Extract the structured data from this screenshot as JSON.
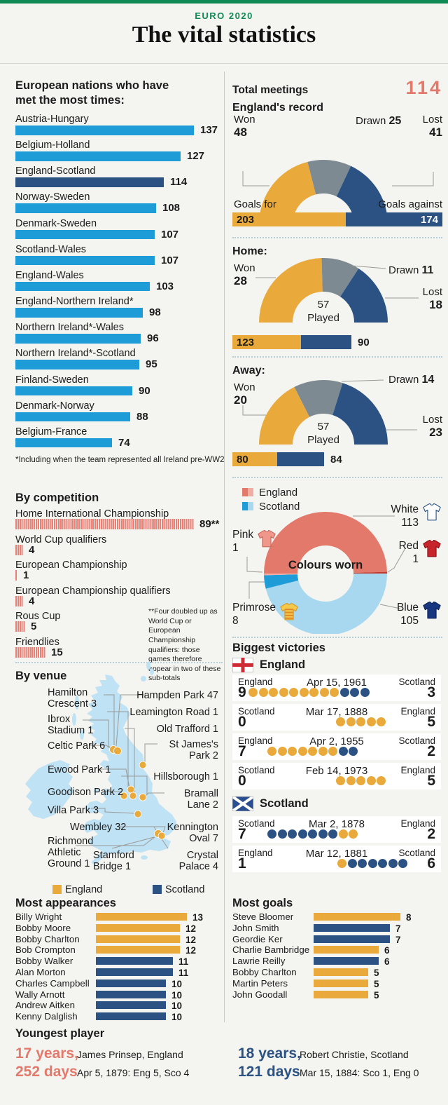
{
  "header": {
    "kicker": "EURO 2020",
    "title": "The vital statistics"
  },
  "colors": {
    "green": "#0f8a55",
    "gold": "#e9a93b",
    "navy": "#2b5283",
    "light_blue": "#1e9cd8",
    "gray": "#7d8a91",
    "coral": "#e3796b",
    "coral_light": "#f2ada2",
    "scotland_light_blue": "#a8d8ef",
    "map_blue": "#bfe2f4",
    "stripe_coral": "#e98076",
    "red_shirt": "#c8242c"
  },
  "chart_data": [
    {
      "id": "most_met",
      "type": "bar",
      "title": "European nations who have met the most times:",
      "categories": [
        "Austria-Hungary",
        "Belgium-Holland",
        "England-Scotland",
        "Norway-Sweden",
        "Denmark-Sweden",
        "Scotland-Wales",
        "England-Wales",
        "England-Northern Ireland*",
        "Northern Ireland*-Wales",
        "Northern Ireland*-Scotland",
        "Finland-Sweden",
        "Denmark-Norway",
        "Belgium-France"
      ],
      "values": [
        137,
        127,
        114,
        108,
        107,
        107,
        103,
        98,
        96,
        95,
        90,
        88,
        74
      ],
      "highlight": "England-Scotland",
      "footnote": "*Including when the team represented all Ireland pre-WW2"
    },
    {
      "id": "england_record",
      "type": "pie",
      "total_label": "Total meetings",
      "total": 114,
      "title": "England's record",
      "segments": [
        {
          "label": "Won",
          "value": 48
        },
        {
          "label": "Drawn",
          "value": 25
        },
        {
          "label": "Lost",
          "value": 41
        }
      ],
      "goals": {
        "for_label": "Goals for",
        "against_label": "Goals against",
        "for": 203,
        "against": 174
      }
    },
    {
      "id": "home_record",
      "type": "pie",
      "title": "Home:",
      "played": 57,
      "played_label": "Played",
      "segments": [
        {
          "label": "Won",
          "value": 28
        },
        {
          "label": "Drawn",
          "value": 11
        },
        {
          "label": "Lost",
          "value": 18
        }
      ],
      "goals": {
        "for": 123,
        "against": 90
      }
    },
    {
      "id": "away_record",
      "type": "pie",
      "title": "Away:",
      "played": 57,
      "played_label": "Played",
      "segments": [
        {
          "label": "Won",
          "value": 20
        },
        {
          "label": "Drawn",
          "value": 14
        },
        {
          "label": "Lost",
          "value": 23
        }
      ],
      "goals": {
        "for": 80,
        "against": 84
      }
    },
    {
      "id": "colours_worn",
      "type": "pie",
      "center_label": "Colours worn",
      "legend": [
        {
          "label": "England"
        },
        {
          "label": "Scotland"
        }
      ],
      "segments": [
        {
          "label": "White",
          "value": 113,
          "team": "England"
        },
        {
          "label": "Red",
          "value": 1,
          "team": "England"
        },
        {
          "label": "Pink",
          "value": 1,
          "team": "England"
        },
        {
          "label": "Primrose",
          "value": 8,
          "team": "Scotland"
        },
        {
          "label": "Blue",
          "value": 105,
          "team": "Scotland"
        }
      ]
    },
    {
      "id": "by_competition",
      "type": "bar",
      "title": "By competition",
      "categories": [
        "Home International Championship",
        "World Cup qualifiers",
        "European Championship",
        "European Championship qualifiers",
        "Rous Cup",
        "Friendlies"
      ],
      "values": [
        89,
        4,
        1,
        4,
        5,
        15
      ],
      "value_labels": [
        "89**",
        "4",
        "1",
        "4",
        "5",
        "15"
      ],
      "footnote": "**Four doubled up as World Cup or European Championship qualifiers: those games therefore appear in two of these sub-totals"
    },
    {
      "id": "by_venue",
      "type": "map",
      "title": "By venue",
      "venues": [
        {
          "name": "Hampden Park",
          "value": 47
        },
        {
          "name": "Hamilton Crescent",
          "value": 3
        },
        {
          "name": "Ibrox Stadium",
          "value": 1
        },
        {
          "name": "Celtic Park",
          "value": 6
        },
        {
          "name": "Leamington Road",
          "value": 1
        },
        {
          "name": "Old Trafford",
          "value": 1
        },
        {
          "name": "St James's Park",
          "value": 2
        },
        {
          "name": "Hillsborough",
          "value": 1
        },
        {
          "name": "Ewood Park",
          "value": 1
        },
        {
          "name": "Goodison Park",
          "value": 2
        },
        {
          "name": "Bramall Lane",
          "value": 2
        },
        {
          "name": "Villa Park",
          "value": 3
        },
        {
          "name": "Wembley",
          "value": 32
        },
        {
          "name": "Kennington Oval",
          "value": 7
        },
        {
          "name": "Richmond Athletic Ground",
          "value": 1
        },
        {
          "name": "Stamford Bridge",
          "value": 1
        },
        {
          "name": "Crystal Palace",
          "value": 4
        }
      ],
      "legend": [
        {
          "label": "England"
        },
        {
          "label": "Scotland"
        }
      ]
    },
    {
      "id": "biggest_victories",
      "type": "table",
      "title": "Biggest victories",
      "groups": [
        {
          "team": "England",
          "matches": [
            {
              "home": "England",
              "home_score": 9,
              "date": "Apr 15, 1961",
              "away": "Scotland",
              "away_score": 3
            },
            {
              "home": "Scotland",
              "home_score": 0,
              "date": "Mar 17, 1888",
              "away": "England",
              "away_score": 5
            },
            {
              "home": "England",
              "home_score": 7,
              "date": "Apr 2, 1955",
              "away": "Scotland",
              "away_score": 2
            },
            {
              "home": "Scotland",
              "home_score": 0,
              "date": "Feb 14, 1973",
              "away": "England",
              "away_score": 5
            }
          ]
        },
        {
          "team": "Scotland",
          "matches": [
            {
              "home": "Scotland",
              "home_score": 7,
              "date": "Mar 2, 1878",
              "away": "England",
              "away_score": 2
            },
            {
              "home": "England",
              "home_score": 1,
              "date": "Mar 12, 1881",
              "away": "Scotland",
              "away_score": 6
            }
          ]
        }
      ]
    },
    {
      "id": "most_appearances",
      "type": "bar",
      "title": "Most appearances",
      "players": [
        {
          "name": "Billy Wright",
          "value": 13,
          "team": "England"
        },
        {
          "name": "Bobby Moore",
          "value": 12,
          "team": "England"
        },
        {
          "name": "Bobby Charlton",
          "value": 12,
          "team": "England"
        },
        {
          "name": "Bob Crompton",
          "value": 12,
          "team": "England"
        },
        {
          "name": "Bobby Walker",
          "value": 11,
          "team": "Scotland"
        },
        {
          "name": "Alan Morton",
          "value": 11,
          "team": "Scotland"
        },
        {
          "name": "Charles Campbell",
          "value": 10,
          "team": "Scotland"
        },
        {
          "name": "Wally Arnott",
          "value": 10,
          "team": "Scotland"
        },
        {
          "name": "Andrew Aitken",
          "value": 10,
          "team": "Scotland"
        },
        {
          "name": "Kenny Dalglish",
          "value": 10,
          "team": "Scotland"
        }
      ]
    },
    {
      "id": "most_goals",
      "type": "bar",
      "title": "Most goals",
      "players": [
        {
          "name": "Steve Bloomer",
          "value": 8,
          "team": "England"
        },
        {
          "name": "John Smith",
          "value": 7,
          "team": "Scotland"
        },
        {
          "name": "Geordie Ker",
          "value": 7,
          "team": "Scotland"
        },
        {
          "name": "Charlie Bambridge",
          "value": 6,
          "team": "England"
        },
        {
          "name": "Lawrie Reilly",
          "value": 6,
          "team": "Scotland"
        },
        {
          "name": "Bobby Charlton",
          "value": 5,
          "team": "England"
        },
        {
          "name": "Martin Peters",
          "value": 5,
          "team": "England"
        },
        {
          "name": "John Goodall",
          "value": 5,
          "team": "England"
        }
      ]
    }
  ],
  "youngest": {
    "title": "Youngest player",
    "entries": [
      {
        "age_years": "17 years,",
        "age_days": "252 days",
        "player": "James Prinsep, England",
        "match": "Apr 5, 1879: Eng 5, Sco 4",
        "team": "England"
      },
      {
        "age_years": "18 years,",
        "age_days": "121 days",
        "player": "Robert Christie, Scotland",
        "match": "Mar 15, 1884: Sco 1, Eng 0",
        "team": "Scotland"
      }
    ]
  }
}
